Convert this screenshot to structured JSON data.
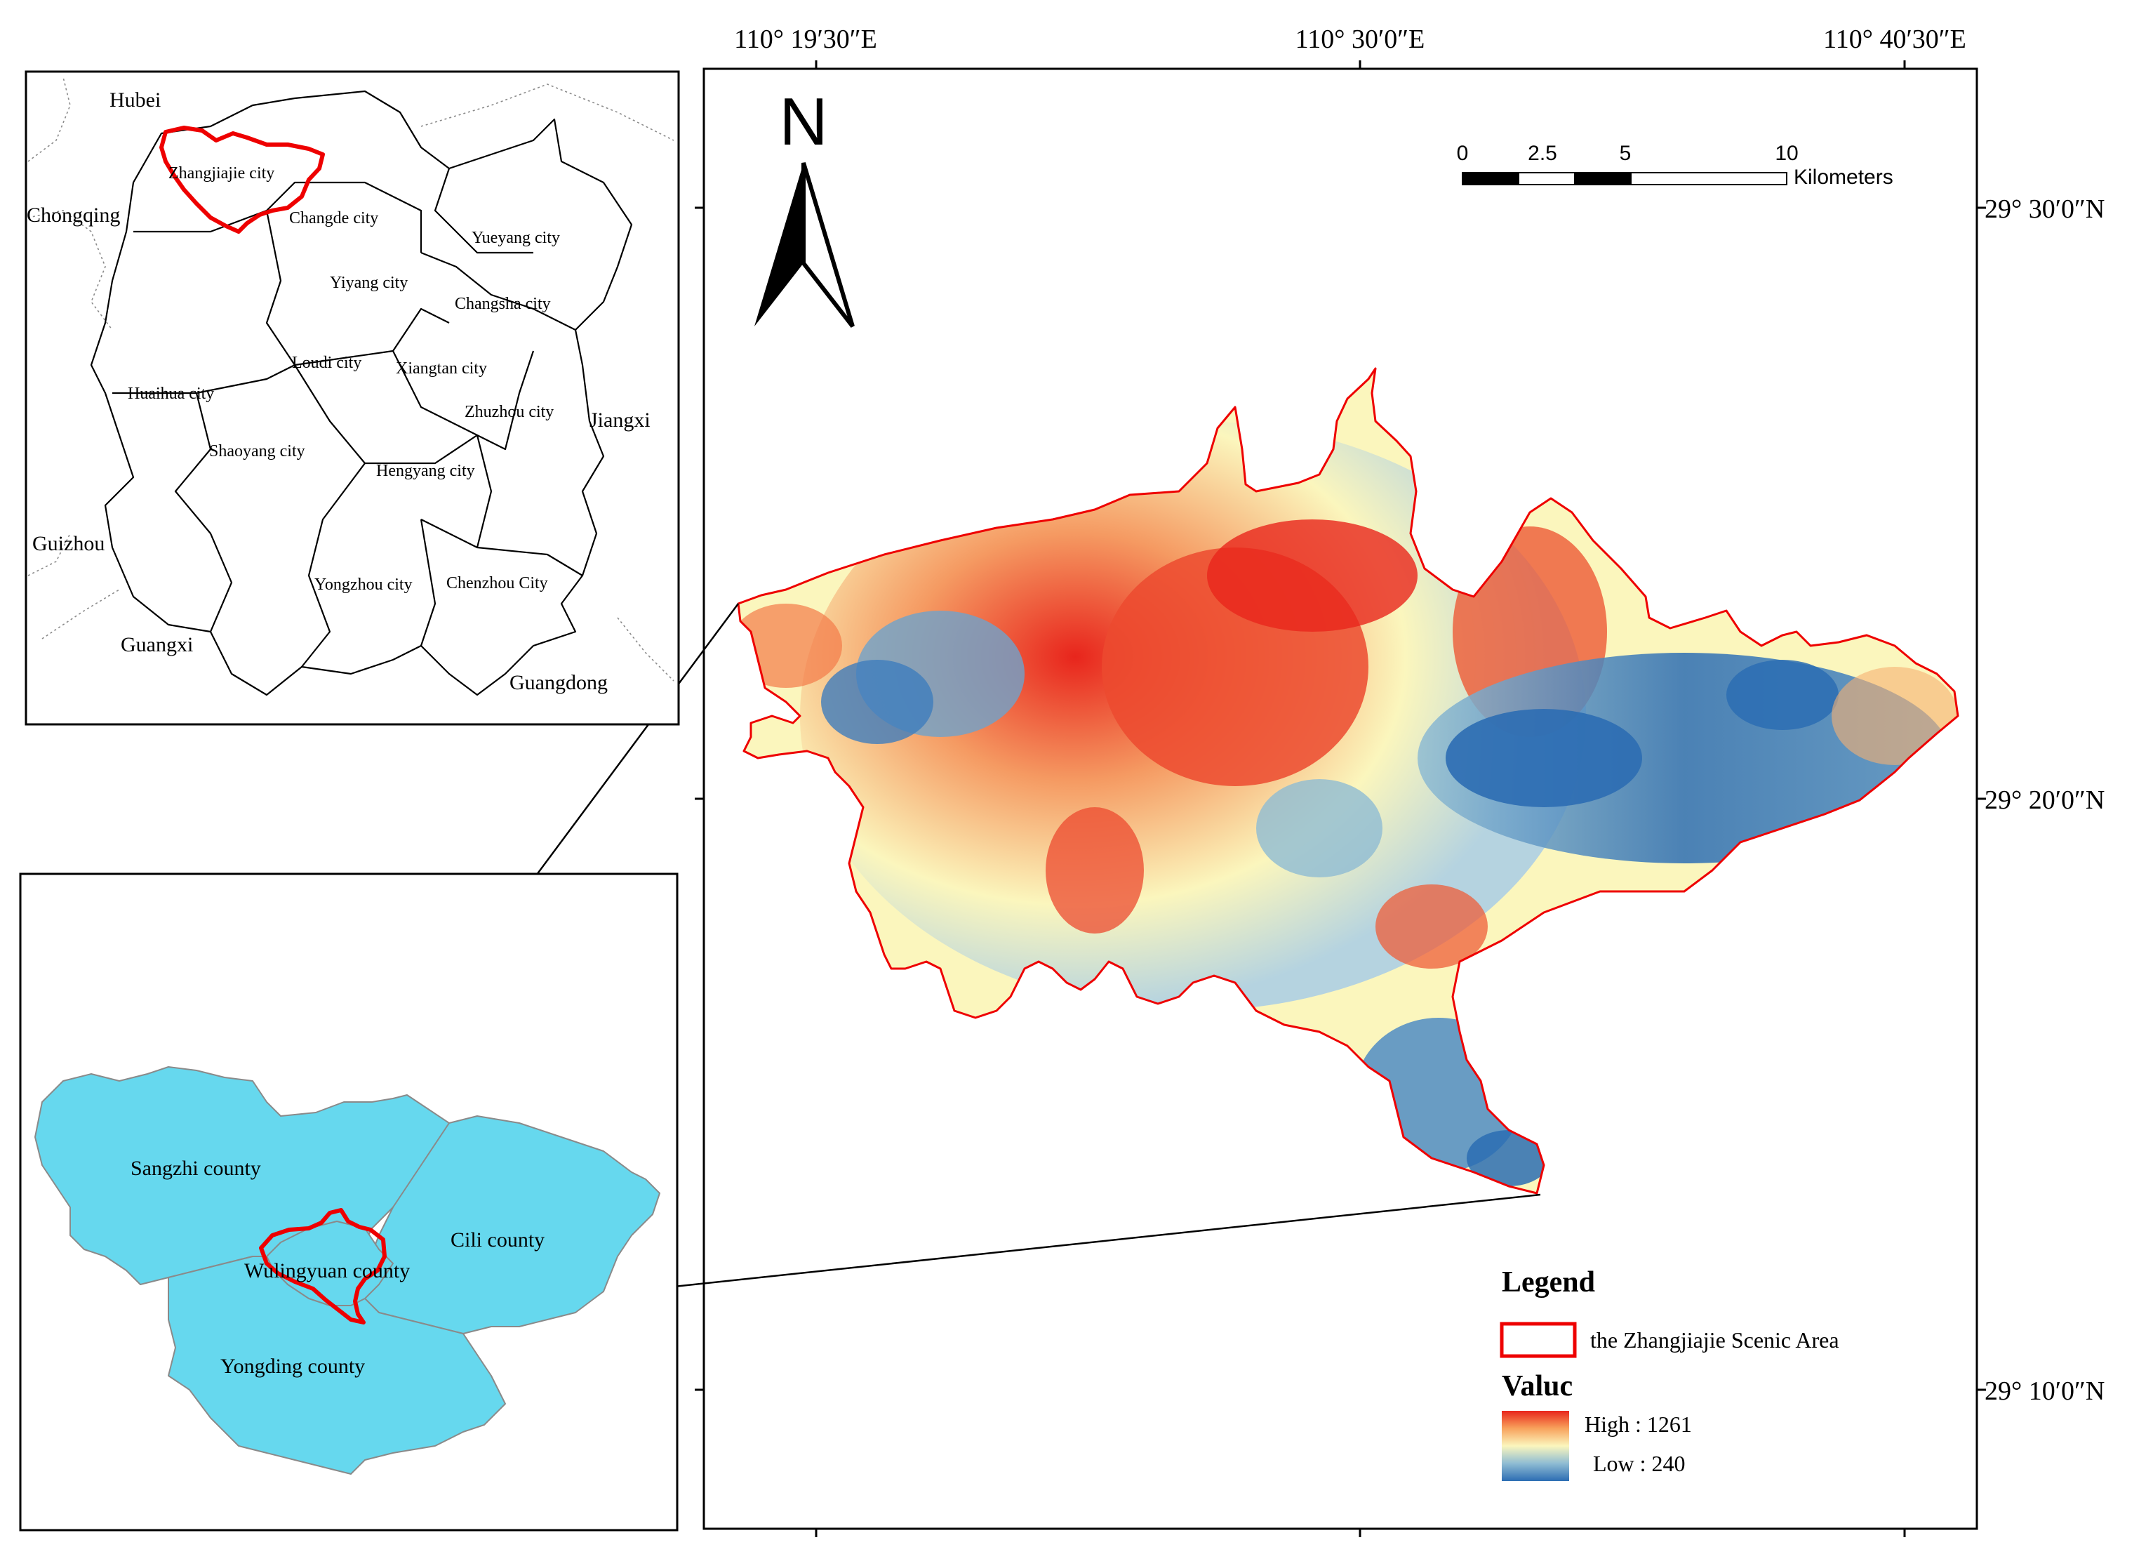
{
  "coordinates": {
    "lon": [
      "110° 19′30″E",
      "110° 30′0″E",
      "110° 40′30″E"
    ],
    "lat": [
      "29° 30′0″N",
      "29° 20′0″N",
      "29° 10′0″N"
    ]
  },
  "north_arrow": {
    "label": "N"
  },
  "scale_bar": {
    "ticks": [
      "0",
      "2.5",
      "5",
      "10"
    ],
    "unit": "Kilometers"
  },
  "province_map": {
    "neighbors": [
      "Hubei",
      "Chongqing",
      "Jiangxi",
      "Guizhou",
      "Guangxi",
      "Guangdong"
    ],
    "cities": [
      "Zhangjiajie city",
      "Changde city",
      "Yueyang city",
      "Yiyang city",
      "Changsha city",
      "Loudi city",
      "Xiangtan city",
      "Huaihua city",
      "Zhuzhou city",
      "Shaoyang city",
      "Hengyang city",
      "Yongzhou city",
      "Chenzhou City"
    ]
  },
  "county_map": {
    "counties": [
      "Sangzhi county",
      "Cili county",
      "Wulingyuan county",
      "Yongding county"
    ]
  },
  "legend": {
    "title": "Legend",
    "scenic_area": "the Zhangjiajie Scenic Area",
    "value_title": "Valuc",
    "high": "High : 1261",
    "low": "Low : 240"
  },
  "colors": {
    "scenic_boundary": "#ee0000",
    "county_fill": "#66d8ee",
    "dem_high": "#e8251c",
    "dem_mid": "#fbf6bd",
    "dem_low": "#2c6db3"
  }
}
